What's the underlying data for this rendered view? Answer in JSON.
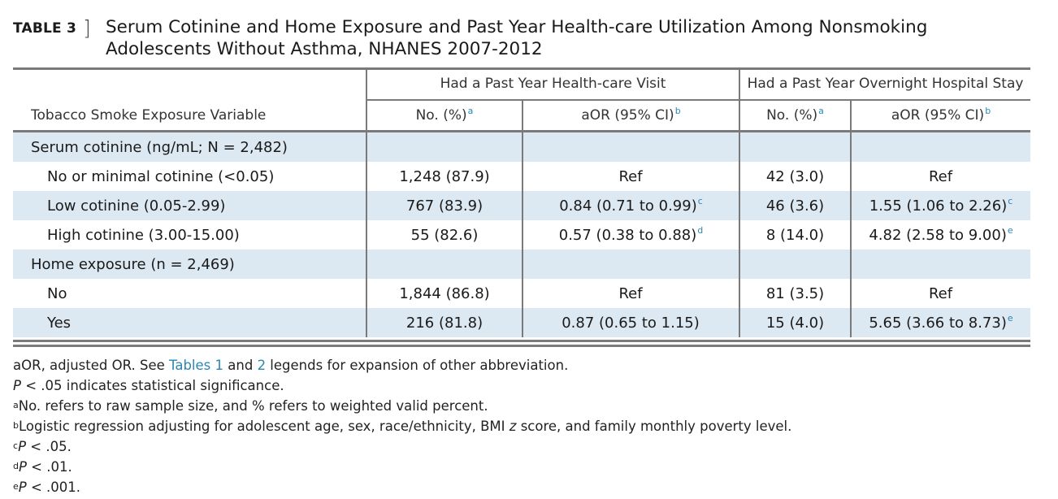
{
  "caption": {
    "label": "TABLE 3",
    "bracket": "]",
    "title_line1": "Serum Cotinine and Home Exposure and Past Year Health-care Utilization Among Nonsmoking",
    "title_line2": "Adolescents Without Asthma, NHANES 2007-2012"
  },
  "table": {
    "group_headers": {
      "visit": "Had a Past Year Health-care Visit",
      "stay": "Had a Past Year Overnight Hospital Stay"
    },
    "columns": {
      "variable": "Tobacco Smoke Exposure Variable",
      "no_pct": "No. (%)",
      "aor": "aOR (95% CI)",
      "no_pct_sup": "a",
      "aor_sup": "b"
    },
    "rows": [
      {
        "label": "Serum cotinine (ng/mL; N = 2,482)",
        "v_no": "",
        "v_aor": "",
        "v_aor_sup": "",
        "s_no": "",
        "s_aor": "",
        "s_aor_sup": ""
      },
      {
        "label": "No or minimal cotinine (<0.05)",
        "v_no": "1,248 (87.9)",
        "v_aor": "Ref",
        "v_aor_sup": "",
        "s_no": "42 (3.0)",
        "s_aor": "Ref",
        "s_aor_sup": ""
      },
      {
        "label": "Low cotinine (0.05-2.99)",
        "v_no": "767 (83.9)",
        "v_aor": "0.84 (0.71 to 0.99)",
        "v_aor_sup": "c",
        "s_no": "46 (3.6)",
        "s_aor": "1.55 (1.06 to 2.26)",
        "s_aor_sup": "c"
      },
      {
        "label": "High cotinine (3.00-15.00)",
        "v_no": "55 (82.6)",
        "v_aor": "0.57 (0.38 to 0.88)",
        "v_aor_sup": "d",
        "s_no": "8 (14.0)",
        "s_aor": "4.82 (2.58 to 9.00)",
        "s_aor_sup": "e"
      },
      {
        "label": "Home exposure (n = 2,469)",
        "v_no": "",
        "v_aor": "",
        "v_aor_sup": "",
        "s_no": "",
        "s_aor": "",
        "s_aor_sup": ""
      },
      {
        "label": "No",
        "v_no": "1,844 (86.8)",
        "v_aor": "Ref",
        "v_aor_sup": "",
        "s_no": "81 (3.5)",
        "s_aor": "Ref",
        "s_aor_sup": ""
      },
      {
        "label": "Yes",
        "v_no": "216 (81.8)",
        "v_aor": "0.87 (0.65 to 1.15)",
        "v_aor_sup": "",
        "s_no": "15 (4.0)",
        "s_aor": "5.65 (3.66 to 8.73)",
        "s_aor_sup": "e"
      }
    ]
  },
  "notes": {
    "n1_pre": "aOR, adjusted OR. See ",
    "n1_link1": "Tables 1",
    "n1_mid": " and ",
    "n1_link2": "2",
    "n1_post": " legends for expansion of other abbreviation.",
    "n2_p": "P",
    "n2_rest": " < .05 indicates statistical significance.",
    "n3_sup": "a",
    "n3_text": "No. refers to raw sample size, and % refers to weighted valid percent.",
    "n4_sup": "b",
    "n4_pre": "Logistic regression adjusting for adolescent age, sex, race/ethnicity, BMI ",
    "n4_z": "z",
    "n4_post": " score, and family monthly poverty level.",
    "n5_sup": "c",
    "n5_p": "P",
    "n5_rest": " < .05.",
    "n6_sup": "d",
    "n6_p": "P",
    "n6_rest": " < .01.",
    "n7_sup": "e",
    "n7_p": "P",
    "n7_rest": " < .001."
  },
  "colors": {
    "accent": "#2a86b5",
    "row_shade": "#dde9f2",
    "rule": "#7a7a7a"
  }
}
